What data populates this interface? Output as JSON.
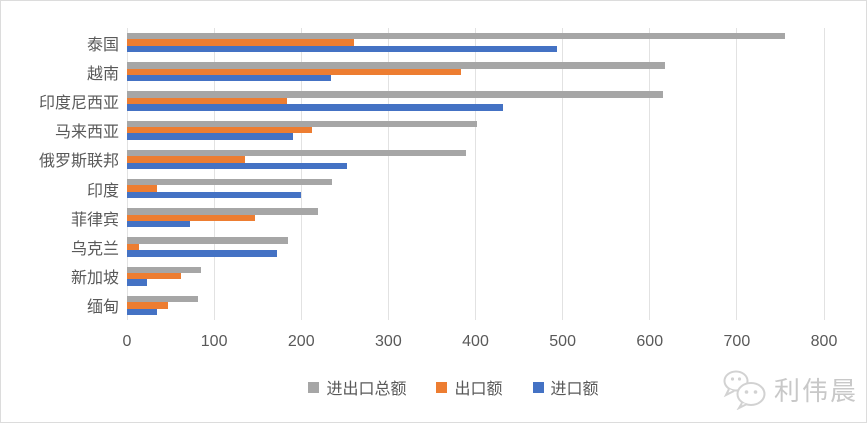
{
  "chart_data": {
    "type": "bar",
    "orientation": "horizontal",
    "title": "",
    "xlabel": "",
    "ylabel": "",
    "categories": [
      "泰国",
      "越南",
      "印度尼西亚",
      "马来西亚",
      "俄罗斯联邦",
      "印度",
      "菲律宾",
      "乌克兰",
      "新加坡",
      "缅甸"
    ],
    "series": [
      {
        "name": "进出口总额",
        "color": "#A6A6A6",
        "values": [
          755,
          617,
          615,
          402,
          389,
          235,
          219,
          185,
          85,
          81
        ]
      },
      {
        "name": "出口额",
        "color": "#ED7D31",
        "values": [
          260,
          383,
          184,
          212,
          135,
          35,
          147,
          14,
          62,
          47
        ]
      },
      {
        "name": "进口额",
        "color": "#4472C4",
        "values": [
          494,
          234,
          431,
          190,
          253,
          200,
          72,
          172,
          23,
          34
        ]
      }
    ],
    "xlim": [
      0,
      800
    ],
    "xticks": [
      0,
      100,
      200,
      300,
      400,
      500,
      600,
      700,
      800
    ],
    "grid": "vertical",
    "legend_position": "bottom"
  },
  "colors": {
    "gridline": "#e2e2e2",
    "axis_text": "#595959",
    "watermark": "#c8c8c8"
  },
  "watermark": {
    "icon": "wechat-logo-icon",
    "text": "利伟晨"
  }
}
